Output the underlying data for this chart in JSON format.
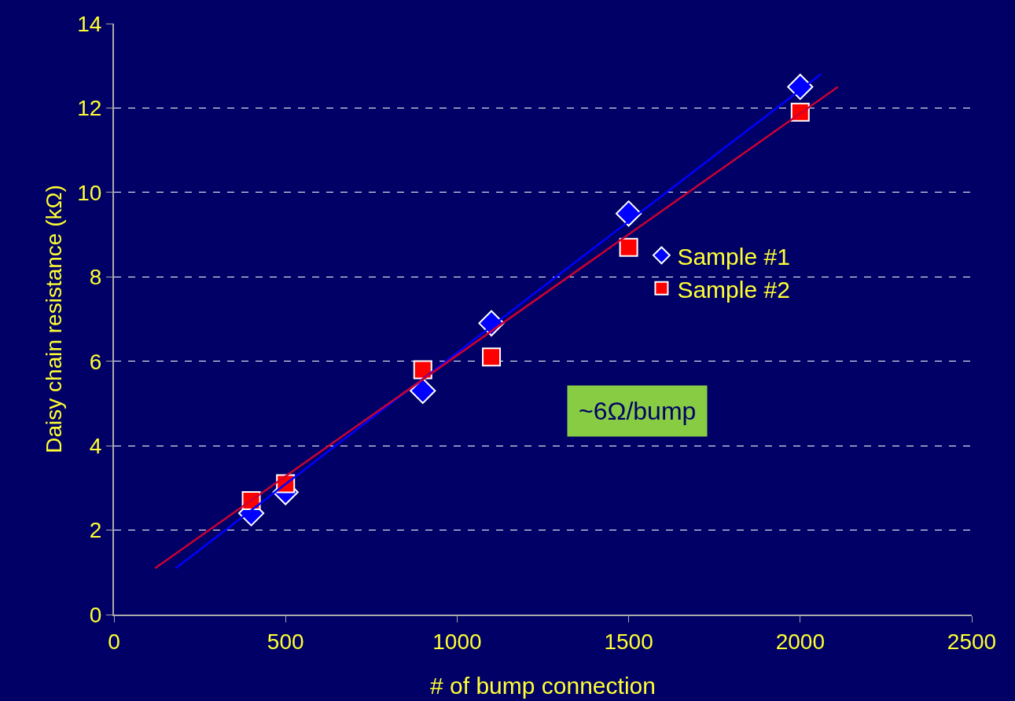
{
  "chart_data": {
    "type": "scatter",
    "xlabel": "# of bump connection",
    "ylabel": "Daisy chain resistance (kΩ)",
    "annotations": [
      "~6Ω/bump"
    ],
    "xlim": [
      0,
      2500
    ],
    "xticks": [
      0,
      500,
      1000,
      1500,
      2000,
      2500
    ],
    "ylim": [
      0,
      14
    ],
    "yticks": [
      0,
      2,
      4,
      6,
      8,
      10,
      12,
      14
    ],
    "grid": "y",
    "legend": "right",
    "series": [
      {
        "name": "Sample #1",
        "color": "#0000ff",
        "marker": "diamond",
        "x": [
          400,
          500,
          900,
          1100,
          1500,
          2000
        ],
        "values": [
          2.4,
          2.9,
          5.3,
          6.9,
          9.5,
          12.5
        ]
      },
      {
        "name": "Sample #2",
        "color": "#ff0000",
        "marker": "square",
        "x": [
          400,
          500,
          900,
          1100,
          1500,
          2000
        ],
        "values": [
          2.7,
          3.1,
          5.8,
          6.1,
          8.7,
          11.9
        ]
      },
      {
        "type": "line",
        "color": "#0000ff",
        "x": [
          180,
          2060
        ],
        "values": [
          1.1,
          12.8
        ]
      },
      {
        "type": "line",
        "color": "#cc0033",
        "x": [
          120,
          2110
        ],
        "values": [
          1.1,
          12.5
        ]
      }
    ]
  }
}
